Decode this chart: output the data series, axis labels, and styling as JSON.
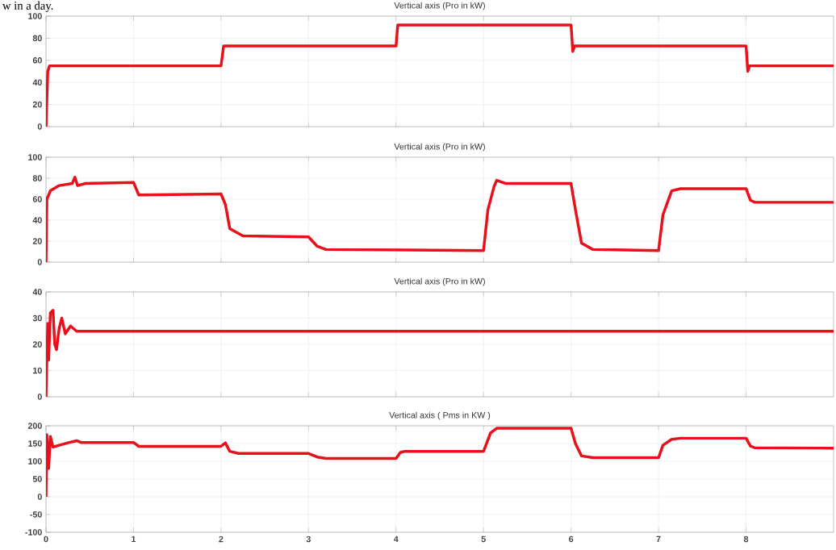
{
  "chart_data": [
    {
      "type": "line",
      "title": "Vertical axis (Pro in kW)",
      "annotations": [
        "w in a day."
      ],
      "xlim": [
        0,
        9
      ],
      "xticks": [
        0,
        1,
        2,
        3,
        4,
        5,
        6,
        7,
        8
      ],
      "ylim": [
        0,
        100
      ],
      "yticks": [
        0,
        20,
        40,
        60,
        80,
        100
      ],
      "grid": true,
      "tick_labels": "y",
      "series": [
        {
          "color": "#e8101a",
          "x": [
            0,
            0.02,
            0.04,
            2.0,
            2.03,
            4.0,
            4.02,
            6.0,
            6.02,
            6.04,
            8.0,
            8.02,
            8.04,
            9
          ],
          "values": [
            0,
            50,
            55,
            55,
            73,
            73,
            92,
            92,
            68,
            73,
            73,
            50,
            55,
            55
          ]
        }
      ]
    },
    {
      "type": "line",
      "title": "Vertical axis (Pro in kW)",
      "xlim": [
        0,
        9
      ],
      "xticks": [
        0,
        1,
        2,
        3,
        4,
        5,
        6,
        7,
        8
      ],
      "ylim": [
        0,
        100
      ],
      "yticks": [
        0,
        20,
        40,
        60,
        80,
        100
      ],
      "grid": true,
      "tick_labels": "y",
      "series": [
        {
          "color": "#e8101a",
          "x": [
            0,
            0.01,
            0.05,
            0.15,
            0.3,
            0.33,
            0.36,
            0.45,
            1.0,
            1.06,
            2.0,
            2.05,
            2.1,
            2.25,
            3.0,
            3.1,
            3.2,
            5.0,
            5.05,
            5.12,
            5.15,
            5.25,
            6.0,
            6.05,
            6.12,
            6.25,
            7.0,
            7.05,
            7.15,
            7.25,
            8.0,
            8.05,
            8.1,
            9
          ],
          "values": [
            0,
            60,
            68,
            73,
            75,
            81,
            73,
            75,
            76,
            64,
            65,
            55,
            32,
            25,
            24,
            15,
            12,
            11,
            50,
            72,
            78,
            75,
            75,
            50,
            18,
            12,
            11,
            45,
            68,
            70,
            70,
            59,
            57,
            57
          ]
        }
      ]
    },
    {
      "type": "line",
      "title": "Vertical axis (Pro in kW)",
      "xlim": [
        0,
        9
      ],
      "xticks": [
        0,
        1,
        2,
        3,
        4,
        5,
        6,
        7,
        8
      ],
      "ylim": [
        0,
        40
      ],
      "yticks": [
        0,
        10,
        20,
        30,
        40
      ],
      "grid": true,
      "tick_labels": "y",
      "series": [
        {
          "color": "#e8101a",
          "x": [
            0,
            0.02,
            0.03,
            0.05,
            0.08,
            0.1,
            0.12,
            0.15,
            0.18,
            0.22,
            0.28,
            0.35,
            9
          ],
          "values": [
            0,
            28,
            14,
            32,
            33,
            20,
            18,
            26,
            30,
            24,
            27,
            25,
            25
          ]
        }
      ]
    },
    {
      "type": "line",
      "title": "Vertical axis ( Pms in KW )",
      "xlim": [
        0,
        9
      ],
      "xticks": [
        0,
        1,
        2,
        3,
        4,
        5,
        6,
        7,
        8
      ],
      "ylim": [
        -100,
        200
      ],
      "yticks": [
        -100,
        -50,
        0,
        50,
        100,
        150,
        200
      ],
      "grid": true,
      "series": [
        {
          "color": "#e8101a",
          "x": [
            0,
            0.01,
            0.03,
            0.05,
            0.08,
            0.15,
            0.25,
            0.35,
            0.4,
            1.0,
            1.06,
            2.0,
            2.05,
            2.1,
            2.2,
            3.0,
            3.1,
            3.2,
            4.0,
            4.05,
            4.1,
            5.0,
            5.08,
            5.15,
            6.0,
            6.05,
            6.12,
            6.25,
            7.0,
            7.05,
            7.15,
            7.25,
            8.0,
            8.05,
            8.1,
            9
          ],
          "values": [
            0,
            175,
            80,
            170,
            140,
            145,
            152,
            158,
            153,
            153,
            142,
            142,
            152,
            128,
            122,
            122,
            112,
            108,
            108,
            125,
            128,
            128,
            180,
            193,
            193,
            150,
            115,
            110,
            110,
            145,
            162,
            165,
            165,
            143,
            138,
            137
          ]
        }
      ]
    }
  ]
}
